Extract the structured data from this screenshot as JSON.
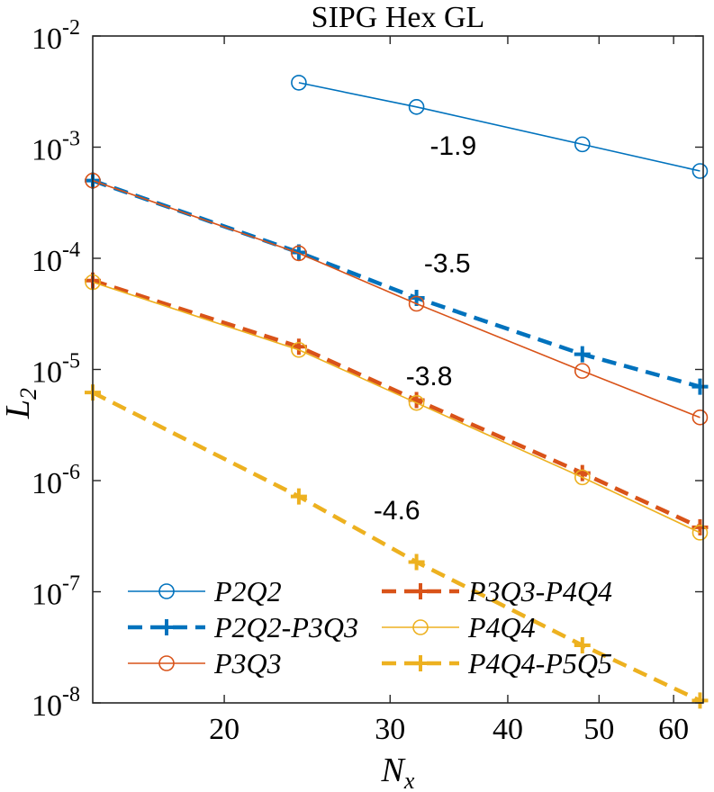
{
  "chart_data": {
    "type": "line",
    "title": "SIPG Hex GL",
    "xlabel": "N",
    "xlabel_sub": "x",
    "ylabel": "L",
    "ylabel_sub": "2",
    "xscale": "log",
    "yscale": "log",
    "xlim": [
      14.5,
      64.5
    ],
    "ylim": [
      1e-08,
      0.01
    ],
    "xticks": [
      20,
      30,
      40,
      50,
      60
    ],
    "xtick_labels": [
      "20",
      "30",
      "40",
      "50",
      "60"
    ],
    "yticks": [
      1e-08,
      1e-07,
      1e-06,
      1e-05,
      0.0001,
      0.001,
      0.01
    ],
    "ytick_labels": [
      {
        "base": "10",
        "exp": "-8"
      },
      {
        "base": "10",
        "exp": "-7"
      },
      {
        "base": "10",
        "exp": "-6"
      },
      {
        "base": "10",
        "exp": "-5"
      },
      {
        "base": "10",
        "exp": "-4"
      },
      {
        "base": "10",
        "exp": "-3"
      },
      {
        "base": "10",
        "exp": "-2"
      }
    ],
    "series": [
      {
        "name": "P2Q2",
        "color": "#0072BD",
        "style": "solid",
        "marker": "circle",
        "x": [
          24,
          32,
          48,
          64
        ],
        "y": [
          0.0038,
          0.0023,
          0.00106,
          0.00061
        ]
      },
      {
        "name": "P2Q2-P3Q3",
        "color": "#0072BD",
        "style": "dashed",
        "marker": "plus",
        "x": [
          14.5,
          24,
          32,
          48,
          64
        ],
        "y": [
          0.0005,
          0.000113,
          4.4e-05,
          1.37e-05,
          7e-06
        ]
      },
      {
        "name": "P3Q3",
        "color": "#D95319",
        "style": "solid",
        "marker": "circle",
        "x": [
          14.5,
          24,
          32,
          48,
          64
        ],
        "y": [
          0.0005,
          0.000111,
          3.9e-05,
          9.7e-06,
          3.7e-06
        ]
      },
      {
        "name": "P3Q3-P4Q4",
        "color": "#D95319",
        "style": "dashed",
        "marker": "plus",
        "x": [
          14.5,
          24,
          32,
          48,
          64
        ],
        "y": [
          6.3e-05,
          1.6e-05,
          5.3e-06,
          1.17e-06,
          3.8e-07
        ]
      },
      {
        "name": "P4Q4",
        "color": "#EDB120",
        "style": "solid",
        "marker": "circle",
        "x": [
          14.5,
          24,
          32,
          48,
          64
        ],
        "y": [
          6.1e-05,
          1.5e-05,
          5e-06,
          1.07e-06,
          3.4e-07
        ]
      },
      {
        "name": "P4Q4-P5Q5",
        "color": "#EDB120",
        "style": "dashed",
        "marker": "plus",
        "x": [
          14.5,
          24,
          32,
          48,
          64
        ],
        "y": [
          6.2e-06,
          7.2e-07,
          1.85e-07,
          3.3e-08,
          1.05e-08
        ]
      }
    ],
    "slope_annotations": [
      {
        "text": "-1.9",
        "x": 35,
        "y": 0.00085
      },
      {
        "text": "-3.5",
        "x": 34.5,
        "y": 7.5e-05
      },
      {
        "text": "-3.8",
        "x": 33,
        "y": 7.2e-06
      },
      {
        "text": "-4.6",
        "x": 30.5,
        "y": 4.5e-07
      }
    ],
    "legend": {
      "position": "bottom-left",
      "columns": 2,
      "entries": [
        {
          "base": "P2Q2",
          "suffix": "",
          "series": 0
        },
        {
          "base": "P2Q2",
          "suffix": "-P3Q3",
          "series": 1
        },
        {
          "base": "P3Q3",
          "suffix": "",
          "series": 2
        },
        {
          "base": "P3Q3",
          "suffix": "-P4Q4",
          "series": 3
        },
        {
          "base": "P4Q4",
          "suffix": "",
          "series": 4
        },
        {
          "base": "P4Q4",
          "suffix": "-P5Q5",
          "series": 5
        }
      ]
    }
  }
}
